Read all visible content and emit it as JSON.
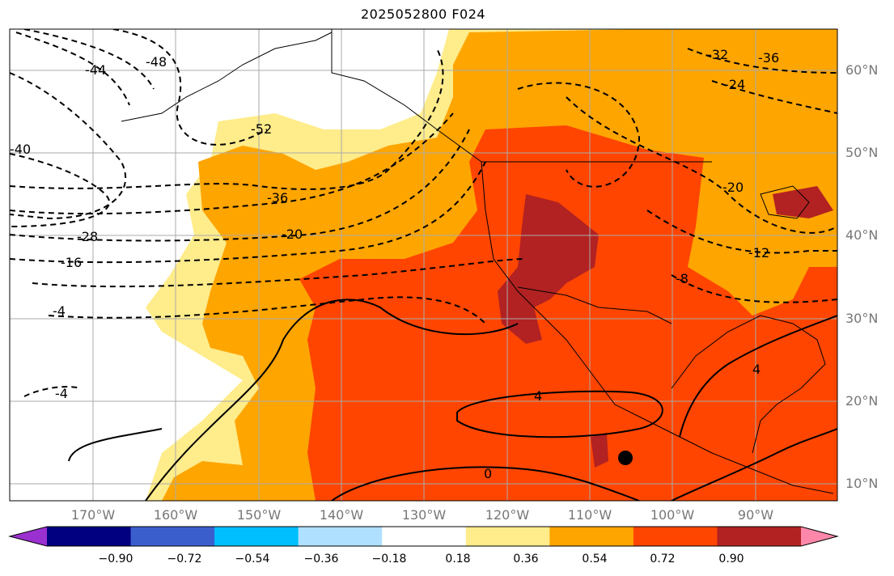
{
  "title": "2025052800 F024",
  "map": {
    "lat_labels": [
      "60°N",
      "50°N",
      "40°N",
      "30°N",
      "20°N",
      "10°N"
    ],
    "lon_labels": [
      "170°W",
      "160°W",
      "150°W",
      "140°W",
      "130°W",
      "120°W",
      "110°W",
      "100°W",
      "90°W"
    ],
    "contour_labels": [
      "-44",
      "-48",
      "-52",
      "-40",
      "-36",
      "-28",
      "-20",
      "-16",
      "-4",
      "-4",
      "-20",
      "-12",
      "-8",
      "-32",
      "-36",
      "-24",
      "4",
      "4",
      "0"
    ],
    "marker": "black-dot"
  },
  "colorbar": {
    "tick_labels": [
      "−0.90",
      "−0.72",
      "−0.54",
      "−0.36",
      "−0.18",
      "0.18",
      "0.36",
      "0.54",
      "0.72",
      "0.90"
    ],
    "colors": [
      "#9b30d0",
      "#000080",
      "#3a5fcd",
      "#00bfff",
      "#b0e0ff",
      "#ffffff",
      "#ffec8b",
      "#ffa500",
      "#ff4500",
      "#b22222",
      "#ff88aa"
    ]
  }
}
